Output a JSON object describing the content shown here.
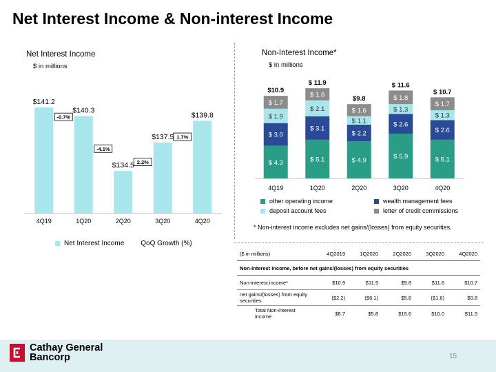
{
  "title": "Net Interest Income & Non-interest Income",
  "left_chart": {
    "title": "Net Interest Income",
    "subtitle": "$ in millions",
    "legend": [
      "Net Interest Income",
      "QoQ Growth (%)"
    ]
  },
  "right_chart": {
    "title": "Non-Interest Income*",
    "subtitle": "$ in millions",
    "legend": [
      "other operating income",
      "wealth management fees",
      "deposit account fees",
      "letter of credit commissions"
    ],
    "footnote": "* Non-interest income excludes net gains/(losses) from equity securities."
  },
  "chart_data": [
    {
      "type": "bar",
      "title": "Net Interest Income",
      "subtitle": "$ in millions",
      "categories": [
        "4Q19",
        "1Q20",
        "2Q20",
        "3Q20",
        "4Q20"
      ],
      "series": [
        {
          "name": "Net Interest Income",
          "values": [
            141.2,
            140.3,
            134.5,
            137.5,
            139.8
          ],
          "labels": [
            "$141.2",
            "$140.3",
            "$134.5",
            "$137.5",
            "$139.8"
          ]
        },
        {
          "name": "QoQ Growth (%)",
          "values": [
            null,
            -0.7,
            -4.1,
            2.2,
            1.7
          ],
          "labels": [
            "",
            "-0.7%",
            "-4.1%",
            "2.2%",
            "1.7%"
          ]
        }
      ],
      "ylim": [
        130,
        142
      ],
      "colors": {
        "bar": "#a8e6ec"
      },
      "legend_position": "bottom"
    },
    {
      "type": "bar",
      "stacked": true,
      "title": "Non-Interest Income*",
      "subtitle": "$ in millions",
      "categories": [
        "4Q19",
        "1Q20",
        "2Q20",
        "3Q20",
        "4Q20"
      ],
      "totals": [
        10.9,
        11.9,
        9.8,
        11.6,
        10.7
      ],
      "total_labels": [
        "$10.9",
        "$ 11.9",
        "$9.8",
        "$ 11.6",
        "$ 10.7"
      ],
      "series": [
        {
          "name": "other operating income",
          "color": "#2a9d87",
          "values": [
            4.3,
            5.1,
            4.9,
            5.9,
            5.1
          ],
          "labels": [
            "$ 4.3",
            "$ 5.1",
            "$ 4.9",
            "$ 5.9",
            "$ 5.1"
          ]
        },
        {
          "name": "wealth management fees",
          "color": "#294b97",
          "values": [
            3.0,
            3.1,
            2.2,
            2.6,
            2.6
          ],
          "labels": [
            "$ 3.0",
            "$ 3.1",
            "$ 2.2",
            "$ 2.6",
            "$ 2.6"
          ]
        },
        {
          "name": "deposit account fees",
          "color": "#a8e6ec",
          "values": [
            1.9,
            2.1,
            1.1,
            1.3,
            1.3
          ],
          "labels": [
            "$ 1.9",
            "$ 2.1",
            "$ 1.1",
            "$ 1.3",
            "$ 1.3"
          ]
        },
        {
          "name": "letter of credit commissions",
          "color": "#8c8c8c",
          "values": [
            1.7,
            1.6,
            1.6,
            1.8,
            1.7
          ],
          "labels": [
            "$ 1.7",
            "$ 1.6",
            "$ 1.6",
            "$ 1.8",
            "$ 1.7"
          ]
        }
      ],
      "legend_position": "bottom"
    }
  ],
  "table": {
    "header": [
      "($ in millions)",
      "4Q2019",
      "1Q2020",
      "2Q2020",
      "3Q2020",
      "4Q2020"
    ],
    "section": "Non-interest income, before net gains/(losses) from equity securities",
    "rows": [
      [
        "Non-interest income*",
        "$10.9",
        "$11.9",
        "$9.8",
        "$11.6",
        "$10.7"
      ],
      [
        "net gains/(losses) from equity securities",
        "($2.2)",
        "($6.1)",
        "$5.8",
        "($1.6)",
        "$0.8"
      ],
      [
        "Total Non-interest income",
        "$8.7",
        "$5.8",
        "$15.6",
        "$10.0",
        "$11.5"
      ]
    ]
  },
  "footer": {
    "logo_line1": "Cathay General",
    "logo_line2": "Bancorp",
    "page_number": "15",
    "colors": {
      "band": "#dff0f3",
      "logo_red": "#c8102e"
    }
  }
}
